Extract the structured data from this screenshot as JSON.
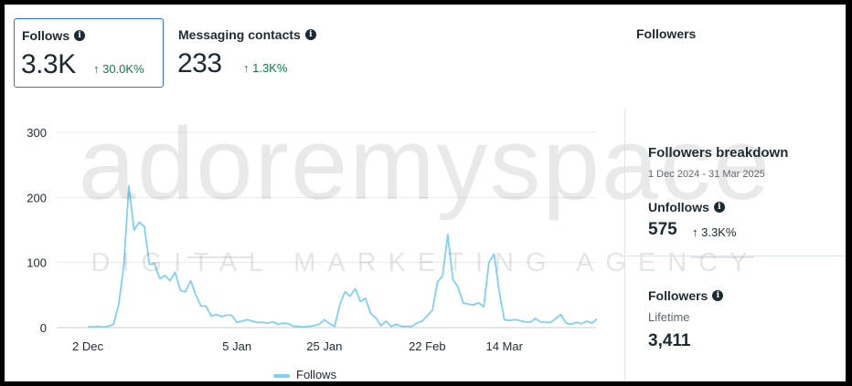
{
  "metrics": [
    {
      "title": "Follows",
      "value": "3.3K",
      "delta": "↑ 30.0K%",
      "selected": true
    },
    {
      "title": "Messaging contacts",
      "value": "233",
      "delta": "↑ 1.3K%",
      "selected": false
    }
  ],
  "panel": {
    "title": "Followers",
    "breakdown_title": "Followers breakdown",
    "date_range": "1 Dec 2024 - 31 Mar 2025",
    "unfollows": {
      "title": "Unfollows",
      "value": "575",
      "delta": "↑ 3.3K%"
    },
    "followers": {
      "title": "Followers",
      "subtitle": "Lifetime",
      "value": "3,411"
    }
  },
  "watermark": {
    "brand": "adoremyspace",
    "tagline": "DIGITAL MARKETING AGENCY"
  },
  "colors": {
    "accent": "#2a77c9",
    "positive": "#0a7d4f",
    "series": "#7fd1f2"
  },
  "chart_data": {
    "type": "line",
    "x_tick_labels": [
      "2 Dec",
      "5 Jan",
      "25 Jan",
      "22 Feb",
      "14 Mar"
    ],
    "y_ticks": [
      0,
      100,
      200,
      300
    ],
    "ylim": [
      0,
      300
    ],
    "series": [
      {
        "name": "Follows",
        "values": [
          1,
          1,
          2,
          1,
          2,
          5,
          35,
          95,
          218,
          150,
          162,
          155,
          97,
          98,
          75,
          80,
          72,
          85,
          57,
          55,
          72,
          50,
          33,
          33,
          18,
          20,
          17,
          19,
          19,
          8,
          10,
          12,
          10,
          8,
          8,
          7,
          9,
          5,
          7,
          6,
          2,
          2,
          1,
          2,
          3,
          5,
          12,
          6,
          2,
          35,
          55,
          48,
          60,
          40,
          45,
          22,
          15,
          3,
          10,
          2,
          5,
          2,
          2,
          2,
          7,
          10,
          18,
          27,
          70,
          80,
          143,
          74,
          62,
          38,
          36,
          35,
          38,
          32,
          100,
          113,
          55,
          12,
          11,
          12,
          11,
          9,
          8,
          14,
          9,
          8,
          8,
          14,
          20,
          7,
          5,
          8,
          6,
          10,
          7,
          13
        ]
      }
    ],
    "legend": "bottom-center"
  }
}
